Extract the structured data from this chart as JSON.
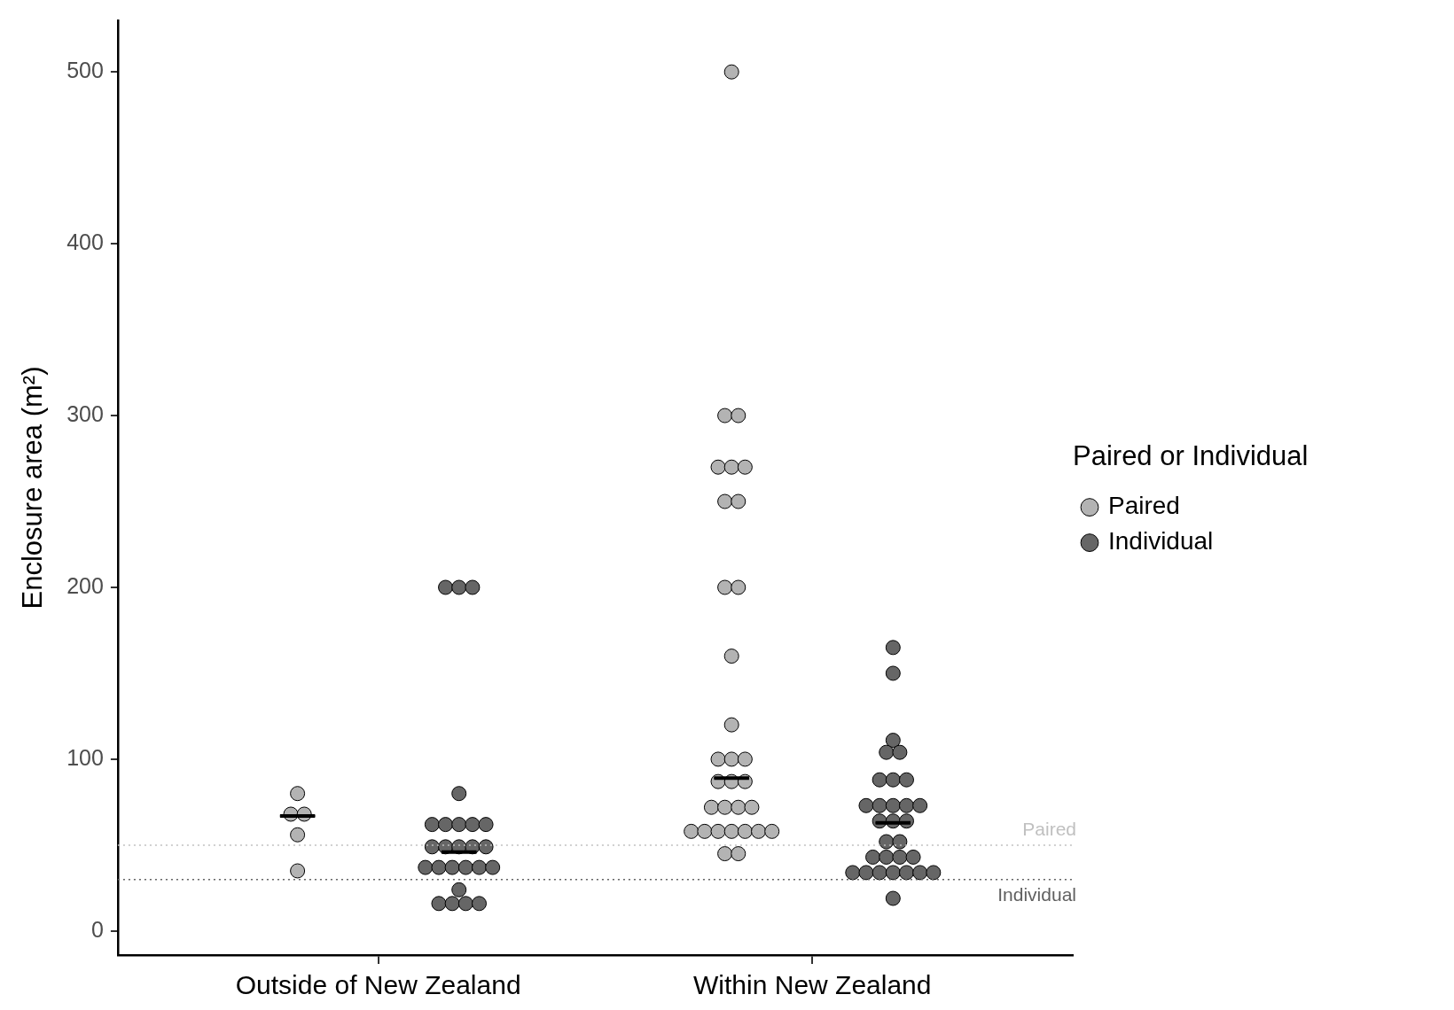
{
  "chart_data": {
    "type": "scatter",
    "ylabel": "Enclosure area (m²)",
    "legend_title": "Paired or Individual",
    "legend": "right",
    "grid": false,
    "marker": "circle",
    "categories": [
      "Outside of New Zealand",
      "Within New Zealand"
    ],
    "ylim": [
      -14,
      530
    ],
    "yticks": [
      0,
      100,
      200,
      300,
      400,
      500
    ],
    "series": [
      {
        "name": "Paired",
        "color": "#b3b3b3",
        "x": [
          "Outside of New Zealand",
          "Outside of New Zealand",
          "Outside of New Zealand",
          "Outside of New Zealand",
          "Outside of New Zealand",
          "Within New Zealand",
          "Within New Zealand",
          "Within New Zealand",
          "Within New Zealand",
          "Within New Zealand",
          "Within New Zealand",
          "Within New Zealand",
          "Within New Zealand",
          "Within New Zealand",
          "Within New Zealand",
          "Within New Zealand",
          "Within New Zealand",
          "Within New Zealand",
          "Within New Zealand",
          "Within New Zealand",
          "Within New Zealand",
          "Within New Zealand",
          "Within New Zealand",
          "Within New Zealand",
          "Within New Zealand",
          "Within New Zealand",
          "Within New Zealand",
          "Within New Zealand",
          "Within New Zealand",
          "Within New Zealand",
          "Within New Zealand",
          "Within New Zealand",
          "Within New Zealand",
          "Within New Zealand",
          "Within New Zealand",
          "Within New Zealand"
        ],
        "values": [
          80,
          68,
          68,
          56,
          35,
          500,
          300,
          300,
          270,
          270,
          270,
          250,
          250,
          200,
          200,
          160,
          120,
          100,
          100,
          100,
          87,
          87,
          87,
          72,
          72,
          72,
          72,
          58,
          58,
          58,
          58,
          58,
          58,
          58,
          45,
          45
        ]
      },
      {
        "name": "Individual",
        "color": "#666666",
        "x": [
          "Outside of New Zealand",
          "Outside of New Zealand",
          "Outside of New Zealand",
          "Outside of New Zealand",
          "Outside of New Zealand",
          "Outside of New Zealand",
          "Outside of New Zealand",
          "Outside of New Zealand",
          "Outside of New Zealand",
          "Outside of New Zealand",
          "Outside of New Zealand",
          "Outside of New Zealand",
          "Outside of New Zealand",
          "Outside of New Zealand",
          "Outside of New Zealand",
          "Outside of New Zealand",
          "Outside of New Zealand",
          "Outside of New Zealand",
          "Outside of New Zealand",
          "Outside of New Zealand",
          "Outside of New Zealand",
          "Outside of New Zealand",
          "Outside of New Zealand",
          "Outside of New Zealand",
          "Outside of New Zealand",
          "Within New Zealand",
          "Within New Zealand",
          "Within New Zealand",
          "Within New Zealand",
          "Within New Zealand",
          "Within New Zealand",
          "Within New Zealand",
          "Within New Zealand",
          "Within New Zealand",
          "Within New Zealand",
          "Within New Zealand",
          "Within New Zealand",
          "Within New Zealand",
          "Within New Zealand",
          "Within New Zealand",
          "Within New Zealand",
          "Within New Zealand",
          "Within New Zealand",
          "Within New Zealand",
          "Within New Zealand",
          "Within New Zealand",
          "Within New Zealand",
          "Within New Zealand",
          "Within New Zealand",
          "Within New Zealand",
          "Within New Zealand",
          "Within New Zealand",
          "Within New Zealand",
          "Within New Zealand",
          "Within New Zealand"
        ],
        "values": [
          200,
          200,
          200,
          80,
          62,
          62,
          62,
          62,
          62,
          49,
          49,
          49,
          49,
          49,
          37,
          37,
          37,
          37,
          37,
          37,
          24,
          16,
          16,
          16,
          16,
          165,
          150,
          111,
          104,
          104,
          88,
          88,
          88,
          73,
          73,
          73,
          73,
          73,
          64,
          64,
          64,
          52,
          52,
          43,
          43,
          43,
          43,
          34,
          34,
          34,
          34,
          34,
          34,
          34,
          19
        ]
      },
      {
        "type": "box",
        "color": "#000000",
        "boxes": [
          {
            "low": 67,
            "q1": 67,
            "median": 67,
            "q3": 67,
            "high": 67
          },
          {
            "low": 89,
            "q1": 89,
            "median": 89,
            "q3": 89,
            "high": 89
          }
        ]
      },
      {
        "type": "box",
        "color": "#000000",
        "boxes": [
          {
            "low": 46,
            "q1": 46,
            "median": 46,
            "q3": 46,
            "high": 46
          },
          {
            "low": 63,
            "q1": 63,
            "median": 63,
            "q3": 63,
            "high": 63
          }
        ]
      }
    ],
    "ref_lines": [
      {
        "axis": "y",
        "value": 50,
        "label": "Paired",
        "color": "#c0c0c0",
        "line_style": "dotted"
      },
      {
        "axis": "y",
        "value": 30,
        "label": "Individual",
        "color": "#606060",
        "line_style": "dotted"
      }
    ]
  }
}
